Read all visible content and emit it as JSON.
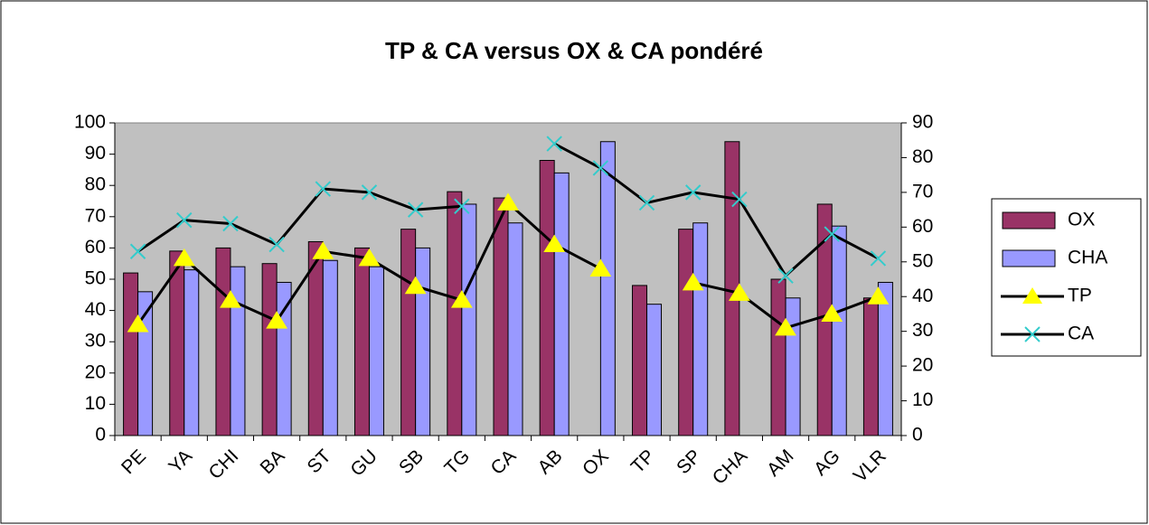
{
  "chart_data": {
    "type": "bar",
    "title": "TP & CA versus OX & CA pondéré",
    "categories": [
      "PE",
      "YA",
      "CHI",
      "BA",
      "ST",
      "GU",
      "SB",
      "TG",
      "CA",
      "AB",
      "OX",
      "TP",
      "SP",
      "CHA",
      "AM",
      "AG",
      "VLR"
    ],
    "series": [
      {
        "name": "OX",
        "type": "bar",
        "color": "#993366",
        "values": [
          52,
          59,
          60,
          55,
          62,
          60,
          66,
          78,
          76,
          88,
          null,
          48,
          66,
          94,
          50,
          74,
          44
        ]
      },
      {
        "name": "CHA",
        "type": "bar",
        "color": "#9999ff",
        "values": [
          46,
          53,
          54,
          49,
          56,
          54,
          60,
          74,
          68,
          84,
          94,
          42,
          68,
          null,
          44,
          67,
          49
        ]
      },
      {
        "name": "TP",
        "type": "line",
        "axis": "y2",
        "color": "#000000",
        "marker": "triangle",
        "marker_color": "#ffff00",
        "values": [
          32,
          51,
          39,
          33,
          53,
          51,
          43,
          39,
          67,
          55,
          48,
          null,
          44,
          41,
          31,
          35,
          40
        ]
      },
      {
        "name": "CA",
        "type": "line",
        "axis": "y2",
        "color": "#000000",
        "marker": "x",
        "marker_color": "#33cccc",
        "values": [
          53,
          62,
          61,
          55,
          71,
          70,
          65,
          66,
          null,
          84,
          77,
          67,
          70,
          68,
          46,
          58,
          51
        ]
      }
    ],
    "ylim": [
      0,
      100
    ],
    "yticks": [
      0,
      10,
      20,
      30,
      40,
      50,
      60,
      70,
      80,
      90,
      100
    ],
    "y2lim": [
      0,
      90
    ],
    "y2ticks": [
      0,
      10,
      20,
      30,
      40,
      50,
      60,
      70,
      80,
      90
    ],
    "plot_background": "#c0c0c0",
    "legend": "right"
  }
}
